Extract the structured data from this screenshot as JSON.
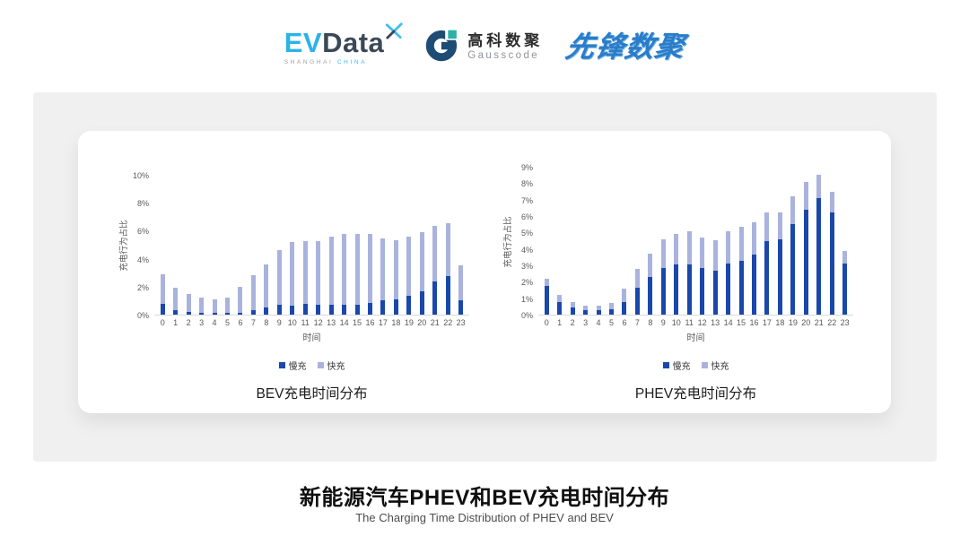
{
  "header": {
    "evdata": {
      "ev": "EV",
      "data": "Data",
      "sub1": "SHANGHAI",
      "sub2": "CHINA"
    },
    "gausscode": {
      "cn": "高科数聚",
      "en": "Gausscode"
    },
    "pioneer": {
      "text": "先锋数聚"
    }
  },
  "colors": {
    "slow_bar": "#1a47ab",
    "fast_bar": "#a9b3dd",
    "axis_text": "#595959",
    "axis_line": "#d9d9d9",
    "band_bg": "#f0f0f0",
    "evdata_blue": "#2bb3e8",
    "evdata_dark": "#3b4857",
    "gauss_navy": "#1d4c74",
    "gauss_teal": "#2fb0a6",
    "pioneer_blue": "#2b7cc9"
  },
  "chart_data": [
    {
      "type": "bar",
      "stacked": true,
      "title": "BEV充电时间分布",
      "xlabel": "时间",
      "ylabel": "充电行为占比",
      "ylim": [
        0,
        10
      ],
      "yticks": [
        "10%",
        "8%",
        "6%",
        "4%",
        "2%",
        "0%"
      ],
      "grid": false,
      "legend_position": "bottom",
      "categories": [
        "0",
        "1",
        "2",
        "3",
        "4",
        "5",
        "6",
        "7",
        "8",
        "9",
        "10",
        "11",
        "12",
        "13",
        "14",
        "15",
        "16",
        "17",
        "18",
        "19",
        "20",
        "21",
        "22",
        "23"
      ],
      "series": [
        {
          "name": "慢充",
          "values": [
            0.8,
            0.35,
            0.2,
            0.15,
            0.1,
            0.1,
            0.15,
            0.35,
            0.5,
            0.7,
            0.65,
            0.75,
            0.7,
            0.7,
            0.7,
            0.7,
            0.85,
            1.0,
            1.1,
            1.35,
            1.65,
            2.35,
            2.75,
            1.0
          ]
        },
        {
          "name": "快充",
          "values": [
            2.1,
            1.55,
            1.3,
            1.05,
            1.0,
            1.1,
            1.85,
            2.45,
            3.1,
            3.9,
            4.55,
            4.5,
            4.55,
            4.9,
            5.05,
            5.05,
            4.95,
            4.45,
            4.2,
            4.2,
            4.25,
            4.0,
            3.8,
            2.55
          ]
        }
      ]
    },
    {
      "type": "bar",
      "stacked": true,
      "title": "PHEV充电时间分布",
      "xlabel": "时间",
      "ylabel": "充电行为占比",
      "ylim": [
        0,
        9
      ],
      "yticks": [
        "9%",
        "8%",
        "7%",
        "6%",
        "5%",
        "4%",
        "3%",
        "2%",
        "1%",
        "0%"
      ],
      "grid": false,
      "legend_position": "bottom",
      "categories": [
        "0",
        "1",
        "2",
        "3",
        "4",
        "5",
        "6",
        "7",
        "8",
        "9",
        "10",
        "11",
        "12",
        "13",
        "14",
        "15",
        "16",
        "17",
        "18",
        "19",
        "20",
        "21",
        "22",
        "23"
      ],
      "series": [
        {
          "name": "慢充",
          "values": [
            1.75,
            0.75,
            0.45,
            0.25,
            0.25,
            0.35,
            0.75,
            1.65,
            2.3,
            2.85,
            3.05,
            3.05,
            2.85,
            2.7,
            3.1,
            3.3,
            3.65,
            4.45,
            4.6,
            5.5,
            6.4,
            7.1,
            6.2,
            3.1
          ]
        },
        {
          "name": "快充",
          "values": [
            0.45,
            0.45,
            0.3,
            0.3,
            0.3,
            0.35,
            0.85,
            1.15,
            1.4,
            1.75,
            1.85,
            2.0,
            1.85,
            1.85,
            2.0,
            2.05,
            1.95,
            1.75,
            1.6,
            1.7,
            1.7,
            1.4,
            1.3,
            0.8
          ]
        }
      ]
    }
  ],
  "footer": {
    "title": "新能源汽车PHEV和BEV充电时间分布",
    "subtitle": "The Charging Time Distribution of PHEV and BEV"
  }
}
